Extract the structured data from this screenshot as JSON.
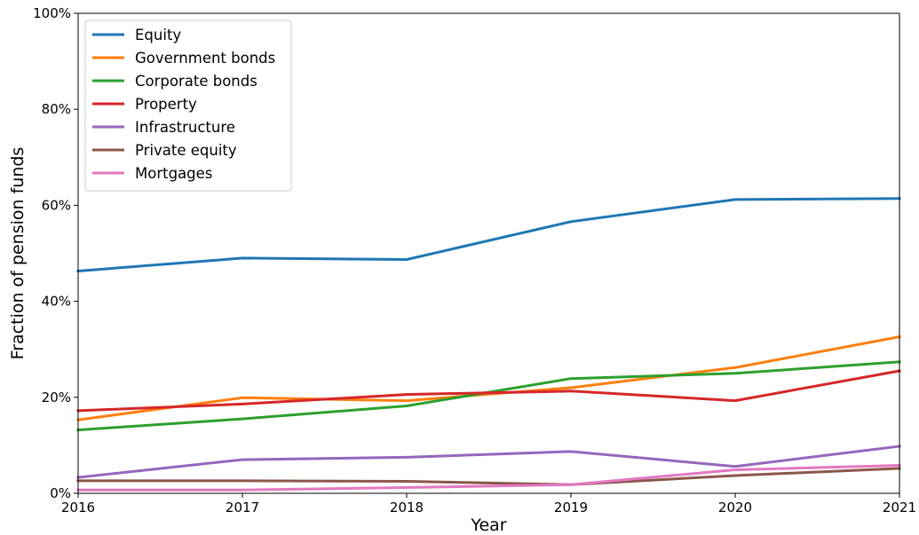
{
  "chart_data": {
    "type": "line",
    "xlabel": "Year",
    "ylabel": "Fraction of pension funds",
    "x": [
      2016,
      2017,
      2018,
      2019,
      2020,
      2021
    ],
    "x_ticks": [
      "2016",
      "2017",
      "2018",
      "2019",
      "2020",
      "2021"
    ],
    "xlim": [
      2016,
      2021
    ],
    "ylim": [
      0,
      100
    ],
    "y_ticks": [
      "0%",
      "20%",
      "40%",
      "60%",
      "80%",
      "100%"
    ],
    "grid": false,
    "legend_position": "top-left",
    "series": [
      {
        "name": "Equity",
        "color": "#1f77b4",
        "values": [
          46.3,
          49.0,
          48.7,
          56.6,
          61.2,
          61.4
        ]
      },
      {
        "name": "Government bonds",
        "color": "#ff7f0e",
        "values": [
          15.3,
          19.9,
          19.3,
          22.0,
          26.2,
          32.6
        ]
      },
      {
        "name": "Corporate bonds",
        "color": "#2ca02c",
        "values": [
          13.2,
          15.5,
          18.2,
          23.9,
          25.0,
          27.4
        ]
      },
      {
        "name": "Property",
        "color": "#d62728",
        "values": [
          17.2,
          18.6,
          20.6,
          21.3,
          19.3,
          25.5
        ]
      },
      {
        "name": "Infrastructure",
        "color": "#9467bd",
        "values": [
          3.3,
          7.0,
          7.5,
          8.7,
          5.6,
          9.8
        ]
      },
      {
        "name": "Private equity",
        "color": "#8c564b",
        "values": [
          2.6,
          2.6,
          2.5,
          1.8,
          3.7,
          5.2
        ]
      },
      {
        "name": "Mortgages",
        "color": "#e377c2",
        "values": [
          0.7,
          0.7,
          1.2,
          1.8,
          4.9,
          5.8
        ]
      }
    ]
  }
}
